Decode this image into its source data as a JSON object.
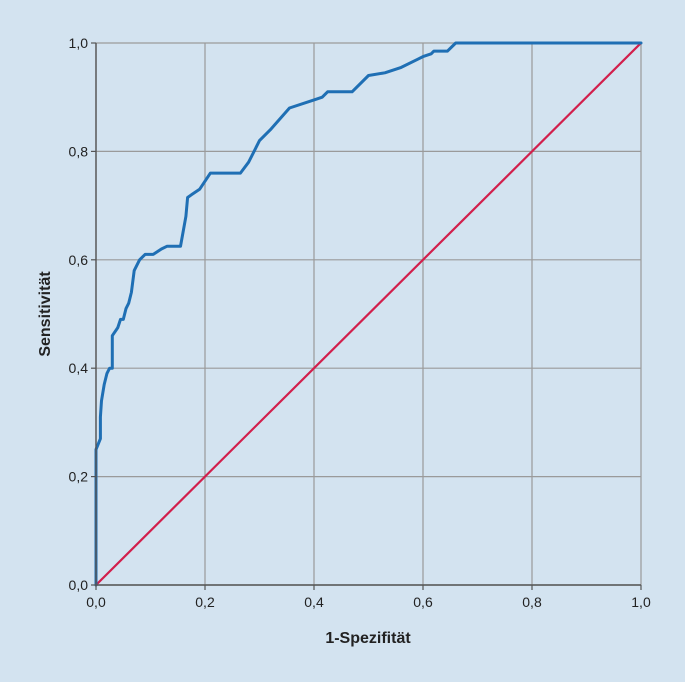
{
  "chart_data": {
    "type": "line",
    "title": "",
    "xlabel": "1-Spezifität",
    "ylabel": "Sensitivität",
    "xlim": [
      0,
      1
    ],
    "ylim": [
      0,
      1
    ],
    "grid": true,
    "x_ticks": [
      0,
      0.2,
      0.4,
      0.6,
      0.8,
      1.0
    ],
    "y_ticks": [
      0,
      0.2,
      0.4,
      0.6,
      0.8,
      1.0
    ],
    "x_tick_labels": [
      "0,0",
      "0,2",
      "0,4",
      "0,6",
      "0,8",
      "1,0"
    ],
    "y_tick_labels": [
      "0,0",
      "0,2",
      "0,4",
      "0,6",
      "0,8",
      "1,0"
    ],
    "series": [
      {
        "color": "#1f6fb4",
        "x": [
          0,
          0,
          0.008,
          0.008,
          0.01,
          0.015,
          0.02,
          0.025,
          0.03,
          0.03,
          0.04,
          0.045,
          0.05,
          0.055,
          0.06,
          0.065,
          0.07,
          0.075,
          0.08,
          0.09,
          0.095,
          0.1,
          0.105,
          0.12,
          0.13,
          0.14,
          0.155,
          0.165,
          0.168,
          0.175,
          0.19,
          0.21,
          0.25,
          0.265,
          0.28,
          0.3,
          0.32,
          0.355,
          0.4,
          0.415,
          0.425,
          0.445,
          0.47,
          0.5,
          0.53,
          0.56,
          0.59,
          0.6,
          0.615,
          0.62,
          0.63,
          0.645,
          0.66,
          0.67,
          0.72,
          1.0
        ],
        "y": [
          0,
          0.25,
          0.27,
          0.31,
          0.34,
          0.37,
          0.39,
          0.4,
          0.4,
          0.46,
          0.475,
          0.49,
          0.49,
          0.51,
          0.52,
          0.54,
          0.58,
          0.59,
          0.6,
          0.61,
          0.61,
          0.61,
          0.61,
          0.62,
          0.625,
          0.625,
          0.625,
          0.68,
          0.715,
          0.72,
          0.73,
          0.76,
          0.76,
          0.76,
          0.78,
          0.82,
          0.84,
          0.88,
          0.895,
          0.9,
          0.91,
          0.91,
          0.91,
          0.94,
          0.945,
          0.955,
          0.97,
          0.975,
          0.98,
          0.985,
          0.985,
          0.985,
          1.0,
          1.0,
          1.0,
          1.0
        ]
      },
      {
        "color": "#d21f4c",
        "x": [
          0,
          1
        ],
        "y": [
          0,
          1
        ]
      }
    ]
  }
}
